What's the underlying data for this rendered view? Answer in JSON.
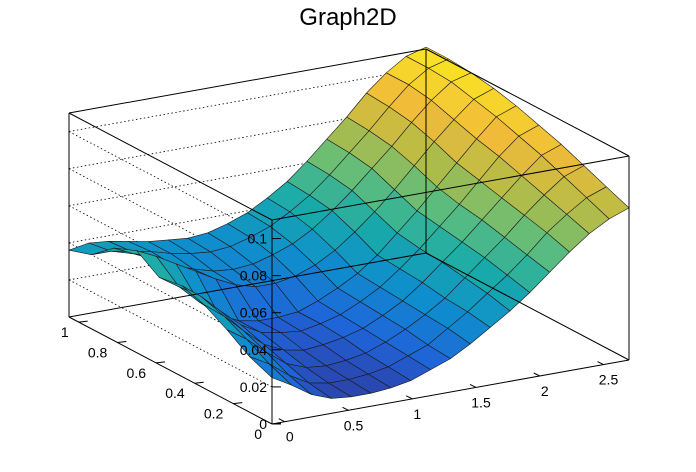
{
  "chart_data": {
    "type": "surface",
    "title": "Graph2D",
    "xlabel": "",
    "ylabel": "",
    "zlabel": "",
    "xlim": [
      -0.1,
      2.7
    ],
    "ylim": [
      0,
      1.05
    ],
    "zlim": [
      0,
      0.11
    ],
    "x_ticks": [
      "0",
      "0.5",
      "1",
      "1.5",
      "2",
      "2.5"
    ],
    "y_ticks": [
      "0",
      "0.2",
      "0.4",
      "0.6",
      "0.8",
      "1"
    ],
    "z_ticks": [
      "0",
      "0.02",
      "0.04",
      "0.06",
      "0.08",
      "0.1"
    ],
    "colormap": [
      "#352a87",
      "#1f64d9",
      "#0f8ecd",
      "#19aba9",
      "#5fbd7c",
      "#b4bc46",
      "#f1bb3a",
      "#f9e125"
    ],
    "grid": true,
    "surface_z": [
      [
        0.025,
        0.019,
        0.012,
        0.008,
        0.007,
        0.007,
        0.008,
        0.01,
        0.014,
        0.018,
        0.024,
        0.031,
        0.038,
        0.046,
        0.055,
        0.064,
        0.072,
        0.078,
        0.082
      ],
      [
        0.03,
        0.024,
        0.016,
        0.01,
        0.008,
        0.008,
        0.009,
        0.011,
        0.015,
        0.019,
        0.026,
        0.033,
        0.041,
        0.049,
        0.058,
        0.068,
        0.076,
        0.083,
        0.087
      ],
      [
        0.038,
        0.031,
        0.022,
        0.014,
        0.01,
        0.009,
        0.01,
        0.012,
        0.016,
        0.021,
        0.027,
        0.034,
        0.043,
        0.052,
        0.061,
        0.071,
        0.08,
        0.088,
        0.092
      ],
      [
        0.045,
        0.037,
        0.027,
        0.018,
        0.013,
        0.011,
        0.012,
        0.014,
        0.017,
        0.022,
        0.028,
        0.036,
        0.045,
        0.054,
        0.064,
        0.074,
        0.084,
        0.093,
        0.097
      ],
      [
        0.049,
        0.041,
        0.031,
        0.022,
        0.016,
        0.014,
        0.013,
        0.015,
        0.018,
        0.023,
        0.029,
        0.037,
        0.046,
        0.056,
        0.066,
        0.077,
        0.088,
        0.097,
        0.101
      ],
      [
        0.047,
        0.04,
        0.03,
        0.021,
        0.016,
        0.014,
        0.014,
        0.015,
        0.019,
        0.024,
        0.03,
        0.038,
        0.048,
        0.058,
        0.069,
        0.08,
        0.091,
        0.101,
        0.105
      ],
      [
        0.055,
        0.05,
        0.044,
        0.038,
        0.032,
        0.027,
        0.024,
        0.024,
        0.026,
        0.03,
        0.036,
        0.044,
        0.053,
        0.063,
        0.074,
        0.085,
        0.095,
        0.104,
        0.108
      ],
      [
        0.05,
        0.045,
        0.04,
        0.035,
        0.031,
        0.028,
        0.027,
        0.028,
        0.031,
        0.035,
        0.041,
        0.049,
        0.058,
        0.068,
        0.078,
        0.089,
        0.099,
        0.107,
        0.11
      ],
      [
        0.04,
        0.04,
        0.038,
        0.036,
        0.033,
        0.031,
        0.03,
        0.031,
        0.034,
        0.038,
        0.044,
        0.051,
        0.06,
        0.07,
        0.08,
        0.091,
        0.101,
        0.108,
        0.111
      ],
      [
        0.036,
        0.038,
        0.037,
        0.035,
        0.033,
        0.032,
        0.031,
        0.032,
        0.035,
        0.039,
        0.045,
        0.052,
        0.061,
        0.071,
        0.081,
        0.092,
        0.101,
        0.108,
        0.111
      ]
    ]
  }
}
